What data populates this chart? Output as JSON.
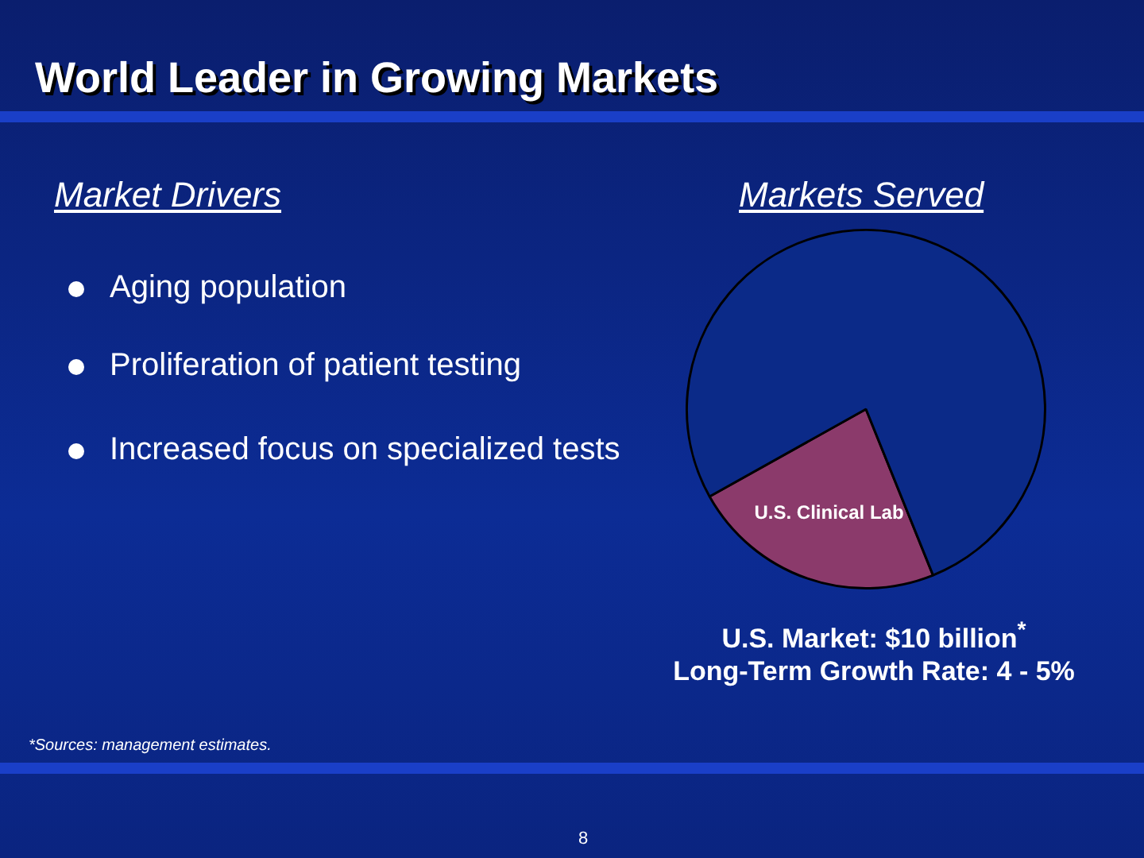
{
  "chart_data": {
    "type": "pie",
    "title": "World Leader in Growing Markets",
    "subtitle": "Markets Served",
    "categories": [
      "U.S. Clinical Lab",
      null
    ],
    "values": [
      23,
      77
    ],
    "colors": [
      "#8b3a6b",
      "#0b2a88"
    ],
    "annotations": [
      "Market Drivers",
      "Aging population",
      "Proliferation of patient testing",
      "Increased focus on specialized tests",
      "U.S. Market: $10 billion$^{*}$",
      "Long-Term Growth Rate: 4 - 5%",
      "*Sources: management estimates.",
      "8"
    ]
  }
}
